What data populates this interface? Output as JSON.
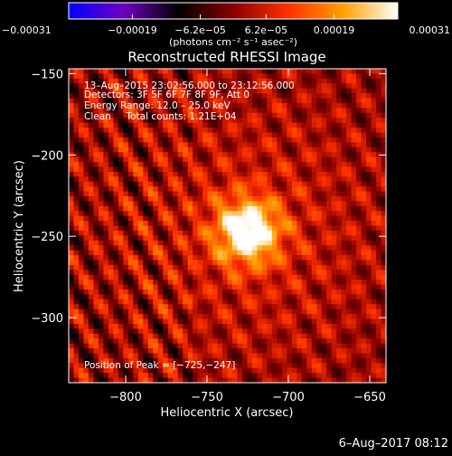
{
  "chart_data": {
    "type": "heatmap",
    "title": "Reconstructed RHESSI Image",
    "xlabel": "Heliocentric X (arcsec)",
    "ylabel": "Heliocentric Y (arcsec)",
    "xlim": [
      -835,
      -640
    ],
    "ylim": [
      -340,
      -147
    ],
    "x_ticks": [
      -800,
      -750,
      -700,
      -650
    ],
    "x_tick_labels": [
      "−800",
      "−750",
      "−700",
      "−650"
    ],
    "y_ticks": [
      -150,
      -200,
      -250,
      -300
    ],
    "y_tick_labels": [
      "−150",
      "−200",
      "−250",
      "−300"
    ],
    "colorbar": {
      "min": -0.00031,
      "max": 0.00031,
      "ticks": [
        -0.00031,
        -0.00019,
        -6.2e-05,
        6.2e-05,
        0.00019,
        0.00031
      ],
      "tick_labels": [
        "−0.00031",
        "−0.00019",
        "−6.2e−05",
        "6.2e−05",
        "0.00019",
        "0.00031"
      ],
      "unit_label": "(photons cm⁻² s⁻¹ asec⁻²)",
      "colors": [
        "#0000ff",
        "#7000c0",
        "#000000",
        "#8a0000",
        "#ff3000",
        "#ffa000",
        "#ffffff"
      ]
    },
    "annotations": [
      "13–Aug–2015 23:02:56.000 to 23:12:56.000",
      "Detectors: 3F 5F 6F 7F 8F 9F, Att 0",
      "Energy Range: 12.0 – 25.0 keV",
      "Clean     Total counts: 1.21E+04"
    ],
    "peak_label": "Position of Peak = [−725,−247]",
    "peak": {
      "x": -725,
      "y": -247,
      "value": 0.00031
    }
  },
  "footer": {
    "timestamp": "6–Aug–2017 08:12"
  }
}
